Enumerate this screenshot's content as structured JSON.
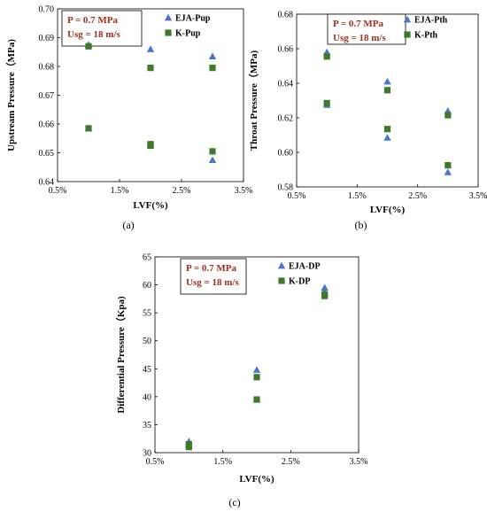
{
  "colors": {
    "triangle": "#4a76c9",
    "square": "#3f7a2b",
    "annotation": "#a0301e"
  },
  "chart_data": [
    {
      "type": "scatter",
      "caption": "(a)",
      "xlabel": "LVF(%)",
      "ylabel": "Upstream Pressure（MPa)",
      "xlim": [
        0.5,
        3.5
      ],
      "xticks": [
        "0.5%",
        "1.5%",
        "2.5%",
        "3.5%"
      ],
      "xtick_values": [
        0.5,
        1.5,
        2.5,
        3.5
      ],
      "ylim": [
        0.64,
        0.7
      ],
      "yticks": [
        "0.64",
        "0.65",
        "0.66",
        "0.67",
        "0.68",
        "0.69",
        "0.70"
      ],
      "ytick_values": [
        0.64,
        0.65,
        0.66,
        0.67,
        0.68,
        0.69,
        0.7
      ],
      "annotation": [
        "P = 0.7 MPa",
        "Usg = 18 m/s"
      ],
      "grid": false,
      "legend_position": "top-right",
      "series": [
        {
          "name": "EJA-Pup",
          "marker": "triangle",
          "x": [
            1,
            1,
            2,
            2,
            2,
            3,
            3
          ],
          "y": [
            0.6585,
            0.6875,
            0.686,
            0.653,
            0.6525,
            0.6835,
            0.6475
          ]
        },
        {
          "name": "K-Pup",
          "marker": "square",
          "x": [
            1,
            1,
            2,
            2,
            2,
            3,
            3
          ],
          "y": [
            0.6585,
            0.687,
            0.6795,
            0.6525,
            0.653,
            0.6795,
            0.6505
          ]
        }
      ]
    },
    {
      "type": "scatter",
      "caption": "(b)",
      "xlabel": "LVF(%)",
      "ylabel": "Throat Pressure（MPa)",
      "xlim": [
        0.5,
        3.5
      ],
      "xticks": [
        "0.5%",
        "1.5%",
        "2.5%",
        "3.5%"
      ],
      "xtick_values": [
        0.5,
        1.5,
        2.5,
        3.5
      ],
      "ylim": [
        0.58,
        0.68
      ],
      "yticks": [
        "0.58",
        "0.60",
        "0.62",
        "0.64",
        "0.66",
        "0.68"
      ],
      "ytick_values": [
        0.58,
        0.6,
        0.62,
        0.64,
        0.66,
        0.68
      ],
      "annotation": [
        "P = 0.7 MPa",
        "Usg = 18 m/s"
      ],
      "grid": false,
      "legend_position": "top-right",
      "series": [
        {
          "name": "EJA-Pth",
          "marker": "triangle",
          "x": [
            1,
            1,
            2,
            2,
            3,
            3
          ],
          "y": [
            0.658,
            0.6275,
            0.641,
            0.6085,
            0.624,
            0.5885
          ]
        },
        {
          "name": "K-Pth",
          "marker": "square",
          "x": [
            1,
            1,
            2,
            2,
            3,
            3
          ],
          "y": [
            0.6555,
            0.6285,
            0.636,
            0.6135,
            0.6215,
            0.5925
          ]
        }
      ]
    },
    {
      "type": "scatter",
      "caption": "(c)",
      "xlabel": "LVF(%)",
      "ylabel": "Differential Pressure（Kpa)",
      "xlim": [
        0.5,
        3.5
      ],
      "xticks": [
        "0.5%",
        "1.5%",
        "2.5%",
        "3.5%"
      ],
      "xtick_values": [
        0.5,
        1.5,
        2.5,
        3.5
      ],
      "ylim": [
        30,
        65
      ],
      "yticks": [
        "30",
        "35",
        "40",
        "45",
        "50",
        "55",
        "60",
        "65"
      ],
      "ytick_values": [
        30,
        35,
        40,
        45,
        50,
        55,
        60,
        65
      ],
      "annotation": [
        "P = 0.7 MPa",
        "Usg = 18 m/s"
      ],
      "grid": false,
      "legend_position": "top-right",
      "series": [
        {
          "name": "EJA-DP",
          "marker": "triangle",
          "x": [
            1,
            1,
            2,
            2,
            3,
            3
          ],
          "y": [
            32,
            31.3,
            44.8,
            39.5,
            59.5,
            58.8
          ]
        },
        {
          "name": "K-DP",
          "marker": "square",
          "x": [
            1,
            1,
            2,
            2,
            3,
            3
          ],
          "y": [
            31.5,
            31.0,
            43.5,
            39.5,
            58.0,
            58.3
          ]
        }
      ]
    }
  ]
}
